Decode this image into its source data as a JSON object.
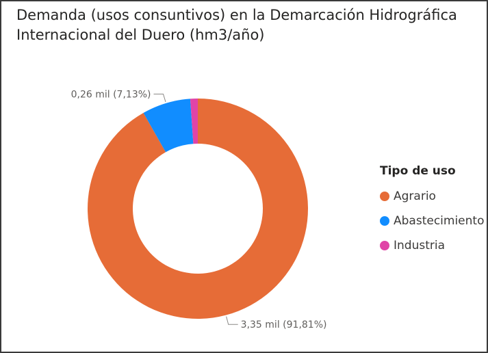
{
  "chart_data": {
    "type": "pie",
    "title": "Demanda (usos consuntivos) en la Demarcación Hidrográfica\nInternacional del Duero (hm3/año)",
    "legend": {
      "title": "Tipo de uso",
      "placement": "right"
    },
    "slices": [
      {
        "name": "Agrario",
        "value": 3.35,
        "percent": 91.81,
        "label": "3,35 mil (91,81%)",
        "color": "#E66C37"
      },
      {
        "name": "Abastecimiento",
        "value": 0.26,
        "percent": 7.13,
        "label": "0,26 mil (7,13%)",
        "color": "#118DFF"
      },
      {
        "name": "Industria",
        "value": 0.04,
        "percent": 1.06,
        "label": "",
        "color": "#E044A7"
      }
    ],
    "donut": true
  }
}
